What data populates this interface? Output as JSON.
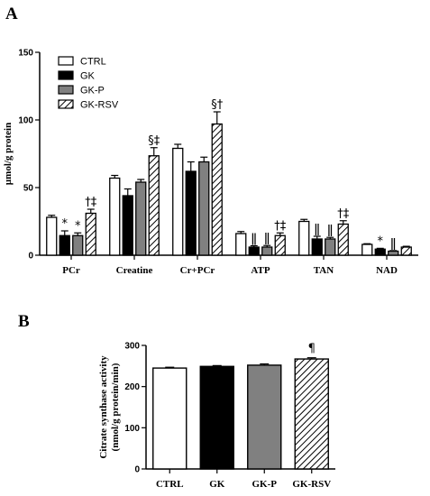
{
  "panels": {
    "a_label": "A",
    "b_label": "B"
  },
  "chart_data": [
    {
      "type": "bar",
      "ylabel": "µmol/g protein",
      "ylim": [
        0,
        150
      ],
      "yticks": [
        "0",
        "50",
        "100",
        "150"
      ],
      "categories": [
        "PCr",
        "Creatine",
        "Cr+PCr",
        "ATP",
        "TAN",
        "NAD"
      ],
      "legend_position": "top-left",
      "series": [
        {
          "name": "CTRL",
          "fill": "white",
          "values": [
            28,
            57,
            79,
            16,
            25,
            8
          ],
          "errors": [
            1.5,
            2,
            3,
            1.5,
            1.5,
            0.5
          ]
        },
        {
          "name": "GK",
          "fill": "black",
          "values": [
            14.5,
            44,
            62,
            6,
            12,
            4.5
          ],
          "errors": [
            3.5,
            5,
            7,
            1,
            2,
            0.6
          ]
        },
        {
          "name": "GK-P",
          "fill": "gray",
          "values": [
            14.5,
            54,
            69,
            6,
            12,
            3
          ],
          "errors": [
            2,
            2,
            3.5,
            1.2,
            1.2,
            0.4
          ]
        },
        {
          "name": "GK-RSV",
          "fill": "hatch",
          "values": [
            31,
            73.5,
            97,
            14.5,
            23,
            6
          ],
          "errors": [
            3,
            6,
            9,
            2,
            2.5,
            0.6
          ]
        }
      ],
      "annotations": [
        {
          "category": "PCr",
          "series": "GK",
          "text": "*"
        },
        {
          "category": "PCr",
          "series": "GK-P",
          "text": "*"
        },
        {
          "category": "PCr",
          "series": "GK-RSV",
          "text": "†‡"
        },
        {
          "category": "Creatine",
          "series": "GK-RSV",
          "text": "§‡"
        },
        {
          "category": "Cr+PCr",
          "series": "GK-RSV",
          "text": "§†"
        },
        {
          "category": "ATP",
          "series": "GK",
          "text": "ǁ"
        },
        {
          "category": "ATP",
          "series": "GK-P",
          "text": "ǁ"
        },
        {
          "category": "ATP",
          "series": "GK-RSV",
          "text": "†‡"
        },
        {
          "category": "TAN",
          "series": "GK",
          "text": "ǁ"
        },
        {
          "category": "TAN",
          "series": "GK-P",
          "text": "ǁ"
        },
        {
          "category": "TAN",
          "series": "GK-RSV",
          "text": "†‡"
        },
        {
          "category": "NAD",
          "series": "GK",
          "text": "*"
        },
        {
          "category": "NAD",
          "series": "GK-P",
          "text": "ǁ"
        }
      ]
    },
    {
      "type": "bar",
      "ylabel_line1": "Citrate synthase activity",
      "ylabel_line2": "(nmol/g protein/min)",
      "ylim": [
        0,
        300
      ],
      "yticks": [
        "0",
        "100",
        "200",
        "300"
      ],
      "categories": [
        "CTRL",
        "GK",
        "GK-P",
        "GK-RSV"
      ],
      "fills": [
        "white",
        "black",
        "gray",
        "hatch"
      ],
      "values": [
        245,
        249,
        252,
        267
      ],
      "errors": [
        2,
        2,
        3,
        3
      ],
      "annotations": [
        {
          "category": "GK-RSV",
          "text": "¶"
        }
      ]
    }
  ]
}
